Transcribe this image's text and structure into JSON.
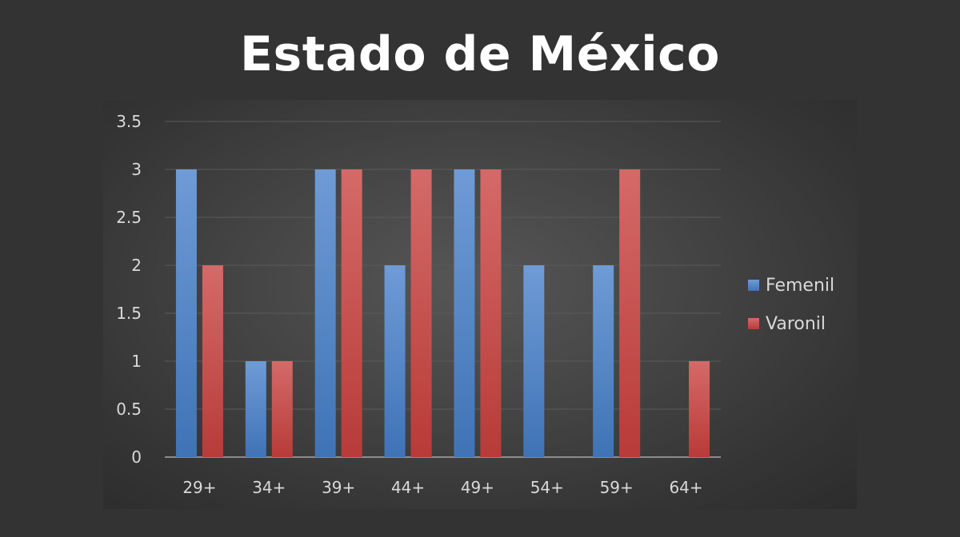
{
  "title": "Estado de México",
  "chart_data": {
    "type": "bar",
    "title": "Estado de México",
    "xlabel": "",
    "ylabel": "",
    "categories": [
      "29+",
      "34+",
      "39+",
      "44+",
      "49+",
      "54+",
      "59+",
      "64+"
    ],
    "series": [
      {
        "name": "Femenil",
        "color": "#4f81bd",
        "values": [
          3,
          1,
          3,
          2,
          3,
          2,
          2,
          0
        ]
      },
      {
        "name": "Varonil",
        "color": "#c0504d",
        "values": [
          2,
          1,
          3,
          3,
          3,
          0,
          3,
          1
        ]
      }
    ],
    "ylim": [
      0,
      3.5
    ],
    "yticks": [
      "0",
      "0.5",
      "1",
      "1.5",
      "2",
      "2.5",
      "3",
      "3.5"
    ],
    "grid": true,
    "legend_position": "right"
  }
}
